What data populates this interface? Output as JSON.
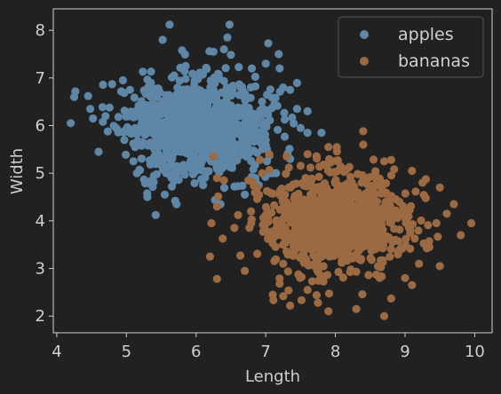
{
  "chart_data": {
    "type": "scatter",
    "xlabel": "Length",
    "ylabel": "Width",
    "xlim": [
      3.95,
      10.25
    ],
    "ylim": [
      1.65,
      8.45
    ],
    "xticks": [
      4,
      5,
      6,
      7,
      8,
      9,
      10
    ],
    "yticks": [
      2,
      3,
      4,
      5,
      6,
      7,
      8
    ],
    "grid": false,
    "legend": "top-right",
    "colors": {
      "background": "#212121",
      "axis": "#cfcfcf",
      "legend_border": "#555555"
    },
    "series": [
      {
        "name": "apples",
        "color": "#5e86a6",
        "distribution": {
          "mean_x": 6.0,
          "mean_y": 6.0,
          "sd_x": 0.5,
          "sd_y": 0.5,
          "count": 1000,
          "seed": 11
        },
        "points": [
          [
            4.2,
            6.05
          ],
          [
            4.25,
            6.6
          ],
          [
            4.45,
            6.62
          ],
          [
            4.48,
            6.35
          ],
          [
            4.6,
            5.45
          ],
          [
            4.52,
            6.15
          ],
          [
            4.7,
            6.2
          ],
          [
            4.85,
            5.95
          ],
          [
            4.95,
            6.95
          ],
          [
            5.05,
            6.75
          ],
          [
            5.1,
            5.25
          ],
          [
            5.15,
            5.0
          ],
          [
            5.3,
            4.5
          ],
          [
            5.4,
            5.35
          ],
          [
            5.42,
            4.12
          ],
          [
            5.55,
            4.55
          ],
          [
            5.52,
            7.8
          ],
          [
            5.7,
            4.42
          ],
          [
            5.72,
            4.35
          ],
          [
            5.62,
            8.12
          ],
          [
            5.85,
            7.25
          ],
          [
            6.25,
            7.55
          ],
          [
            6.4,
            7.6
          ],
          [
            6.45,
            7.85
          ],
          [
            6.48,
            8.12
          ],
          [
            6.8,
            7.2
          ],
          [
            7.0,
            7.3
          ],
          [
            7.2,
            7.2
          ],
          [
            7.25,
            6.8
          ],
          [
            7.35,
            6.75
          ],
          [
            7.45,
            6.35
          ],
          [
            7.6,
            6.3
          ],
          [
            7.5,
            5.95
          ],
          [
            7.6,
            5.85
          ],
          [
            7.8,
            5.85
          ],
          [
            7.35,
            5.3
          ],
          [
            7.05,
            5.0
          ],
          [
            6.85,
            4.9
          ],
          [
            6.9,
            4.75
          ],
          [
            6.7,
            4.55
          ],
          [
            6.55,
            4.72
          ],
          [
            6.35,
            4.35
          ],
          [
            6.1,
            4.75
          ]
        ]
      },
      {
        "name": "bananas",
        "color": "#9b6a43",
        "distribution": {
          "mean_x": 8.0,
          "mean_y": 4.0,
          "sd_x": 0.5,
          "sd_y": 0.5,
          "count": 1000,
          "seed": 29
        },
        "points": [
          [
            6.2,
            3.25
          ],
          [
            6.3,
            2.78
          ],
          [
            6.22,
            3.95
          ],
          [
            6.3,
            4.3
          ],
          [
            6.25,
            5.35
          ],
          [
            6.3,
            4.9
          ],
          [
            6.4,
            4.85
          ],
          [
            6.55,
            3.85
          ],
          [
            6.7,
            2.95
          ],
          [
            7.1,
            2.45
          ],
          [
            7.2,
            2.68
          ],
          [
            7.25,
            3.1
          ],
          [
            7.35,
            2.22
          ],
          [
            7.6,
            2.55
          ],
          [
            7.75,
            2.28
          ],
          [
            7.9,
            2.1
          ],
          [
            8.3,
            2.15
          ],
          [
            8.7,
            2.0
          ],
          [
            8.8,
            2.37
          ],
          [
            9.0,
            2.8
          ],
          [
            9.1,
            2.65
          ],
          [
            9.2,
            3.1
          ],
          [
            9.5,
            3.05
          ],
          [
            9.35,
            3.45
          ],
          [
            9.45,
            3.95
          ],
          [
            9.6,
            4.15
          ],
          [
            9.8,
            3.7
          ],
          [
            9.95,
            3.95
          ],
          [
            9.7,
            4.35
          ],
          [
            9.5,
            4.7
          ],
          [
            9.25,
            4.8
          ],
          [
            9.1,
            5.05
          ],
          [
            8.8,
            5.28
          ],
          [
            8.7,
            5.25
          ],
          [
            8.4,
            5.6
          ],
          [
            8.4,
            5.88
          ],
          [
            7.9,
            5.55
          ],
          [
            7.6,
            5.4
          ],
          [
            7.3,
            5.35
          ],
          [
            7.05,
            5.4
          ],
          [
            6.95,
            5.0
          ],
          [
            6.75,
            4.85
          ]
        ]
      }
    ]
  }
}
